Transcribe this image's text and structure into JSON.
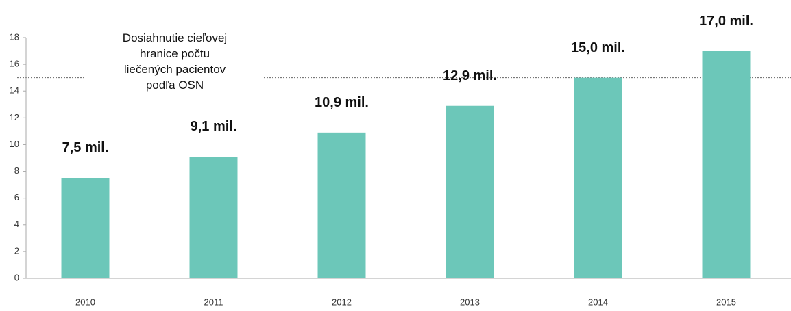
{
  "chart_data": {
    "type": "bar",
    "categories": [
      "2010",
      "2011",
      "2012",
      "2013",
      "2014",
      "2015"
    ],
    "values": [
      7.5,
      9.1,
      10.9,
      12.9,
      15.0,
      17.0
    ],
    "value_labels": [
      "7,5 mil.",
      "9,1 mil.",
      "10,9 mil.",
      "12,9 mil.",
      "15,0 mil.",
      "17,0 mil."
    ],
    "color": "#6cc7b9",
    "ylim": [
      0,
      18
    ],
    "yticks": [
      0,
      2,
      4,
      6,
      8,
      10,
      12,
      14,
      16,
      18
    ],
    "grid": false,
    "reference_line": 15,
    "annotation": [
      "Dosiahnutie cieľovej",
      "hranice počtu",
      "liečených pacientov",
      "podľa OSN"
    ]
  }
}
